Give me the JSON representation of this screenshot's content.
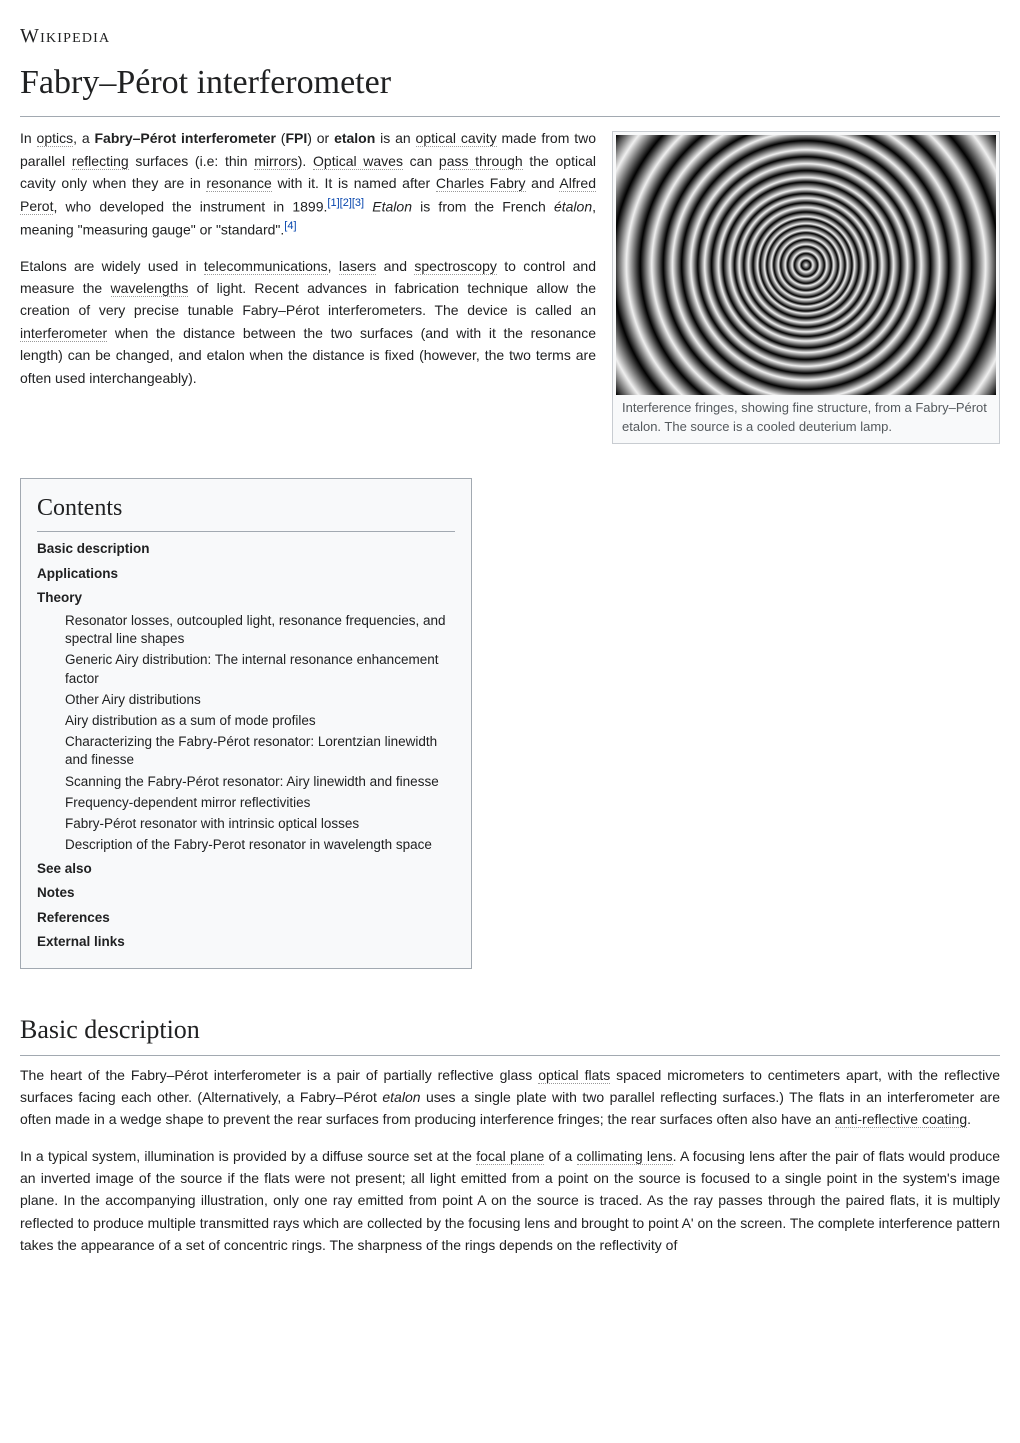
{
  "site": {
    "name": "Wikipedia"
  },
  "page": {
    "title": "Fabry–Pérot interferometer"
  },
  "intro": {
    "p1_pre": "In ",
    "p1_l1": "optics",
    "p1_t2": ", a ",
    "p1_b1": "Fabry–Pérot interferometer",
    "p1_t3": " (",
    "p1_b2": "FPI",
    "p1_t4": ") or ",
    "p1_b3": "etalon",
    "p1_t5": " is an ",
    "p1_l2": "optical cavity",
    "p1_t6": " made from two parallel ",
    "p1_l3": "reflecting",
    "p1_t7": " surfaces (i.e: thin ",
    "p1_l4": "mirrors",
    "p1_t8": "). ",
    "p1_l5": "Optical waves",
    "p1_t9": " can ",
    "p1_l6": "pass through",
    "p1_t10": " the optical cavity only when they are in ",
    "p1_l7": "resonance",
    "p1_t11": " with it. It is named after ",
    "p1_l8": "Charles Fabry",
    "p1_t12": " and ",
    "p1_l9": "Alfred Perot",
    "p1_t13": ", who developed the instrument in 1899.",
    "p1_ref1": "[1]",
    "p1_ref2": "[2]",
    "p1_ref3": "[3]",
    "p1_t14": " ",
    "p1_i1": "Etalon",
    "p1_t15": " is from the French ",
    "p1_i2": "étalon",
    "p1_t16": ", meaning \"measuring gauge\" or \"standard\".",
    "p1_ref4": "[4]",
    "p2_t1": "Etalons are widely used in ",
    "p2_l1": "telecommunications",
    "p2_t2": ", ",
    "p2_l2": "lasers",
    "p2_t3": " and ",
    "p2_l3": "spectroscopy",
    "p2_t4": " to control and measure the ",
    "p2_l4": "wavelengths",
    "p2_t5": " of light. Recent advances in fabrication technique allow the creation of very precise tunable Fabry–Pérot interferometers. The device is called an ",
    "p2_l5": "interferometer",
    "p2_t6": " when the distance between the two surfaces (and with it the resonance length) can be changed, and etalon when the distance is fixed (however, the two terms are often used interchangeably)."
  },
  "figure": {
    "caption": "Interference fringes, showing fine structure, from a Fabry–Pérot etalon. The source is a cooled deuterium lamp."
  },
  "toc": {
    "title": "Contents",
    "items": {
      "s1": "Basic description",
      "s2": "Applications",
      "s3": "Theory",
      "s3_1": "Resonator losses, outcoupled light, resonance frequencies, and spectral line shapes",
      "s3_2": "Generic Airy distribution: The internal resonance enhancement factor",
      "s3_3": "Other Airy distributions",
      "s3_4": "Airy distribution as a sum of mode profiles",
      "s3_5": "Characterizing the Fabry-Pérot resonator: Lorentzian linewidth and finesse",
      "s3_6": "Scanning the Fabry-Pérot resonator: Airy linewidth and finesse",
      "s3_7": "Frequency-dependent mirror reflectivities",
      "s3_8": "Fabry-Pérot resonator with intrinsic optical losses",
      "s3_9": "Description of the Fabry-Perot resonator in wavelength space",
      "s4": "See also",
      "s5": "Notes",
      "s6": "References",
      "s7": "External links"
    }
  },
  "sections": {
    "basic_description": {
      "heading": "Basic description",
      "p1_t1": "The heart of the Fabry–Pérot interferometer is a pair of partially reflective glass ",
      "p1_l1": "optical flats",
      "p1_t2": " spaced micrometers to centimeters apart, with the reflective surfaces facing each other. (Alternatively, a Fabry–Pérot ",
      "p1_i1": "etalon",
      "p1_t3": " uses a single plate with two parallel reflecting surfaces.) The flats in an interferometer are often made in a wedge shape to prevent the rear surfaces from producing interference fringes; the rear surfaces often also have an ",
      "p1_l2": "anti-reflective coating",
      "p1_t4": ".",
      "p2_t1": "In a typical system, illumination is provided by a diffuse source set at the ",
      "p2_l1": "focal plane",
      "p2_t2": " of a ",
      "p2_l2": "collimating lens",
      "p2_t3": ". A focusing lens after the pair of flats would produce an inverted image of the source if the flats were not present; all light emitted from a point on the source is focused to a single point in the system's image plane. In the accompanying illustration, only one ray emitted from point A on the source is traced. As the ray passes through the paired flats, it is multiply reflected to produce multiple transmitted rays which are collected by the focusing lens and brought to point A' on the screen. The complete interference pattern takes the appearance of a set of concentric rings. The sharpness of the rings depends on the reflectivity of"
    }
  }
}
